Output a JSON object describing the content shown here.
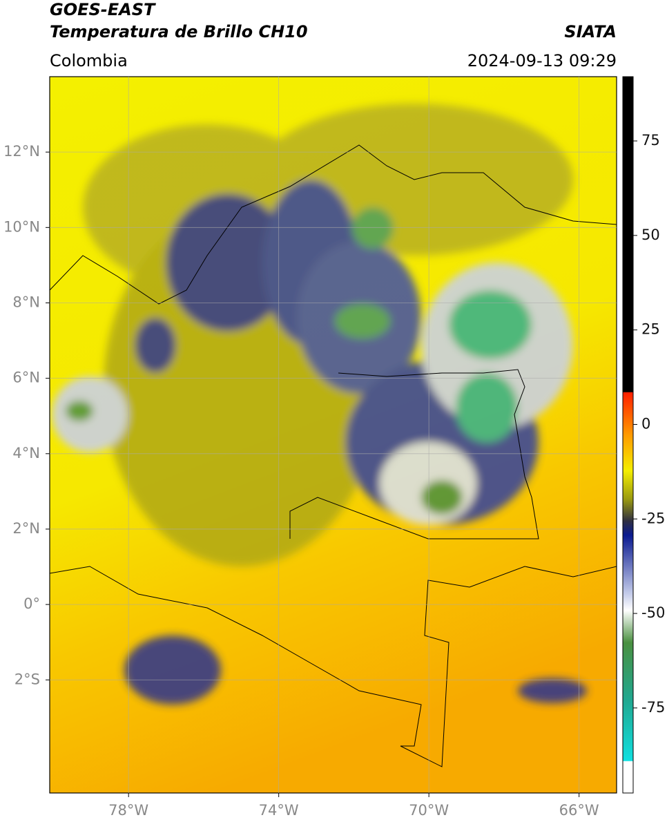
{
  "header": {
    "title": "GOES-EAST",
    "subtitle": "Temperatura de Brillo CH10",
    "source": "SIATA",
    "region": "Colombia",
    "timestamp": "2024-09-13 09:29"
  },
  "map": {
    "xlim": [
      -80.1,
      -65
    ],
    "ylim": [
      -5,
      14
    ],
    "xticks": [
      {
        "value": -78,
        "label": "78°W"
      },
      {
        "value": -74,
        "label": "74°W"
      },
      {
        "value": -70,
        "label": "70°W"
      },
      {
        "value": -66,
        "label": "66°W"
      }
    ],
    "yticks": [
      {
        "value": 12,
        "label": "12°N"
      },
      {
        "value": 10,
        "label": "10°N"
      },
      {
        "value": 8,
        "label": "8°N"
      },
      {
        "value": 6,
        "label": "6°N"
      },
      {
        "value": 4,
        "label": "4°N"
      },
      {
        "value": 2,
        "label": "2°N"
      },
      {
        "value": 0,
        "label": "0°"
      },
      {
        "value": -2,
        "label": "2°S"
      }
    ]
  },
  "colorbar": {
    "ylim": [
      -97.5,
      92
    ],
    "yticks": [
      75,
      50,
      25,
      0,
      -25,
      -50,
      -75
    ]
  }
}
